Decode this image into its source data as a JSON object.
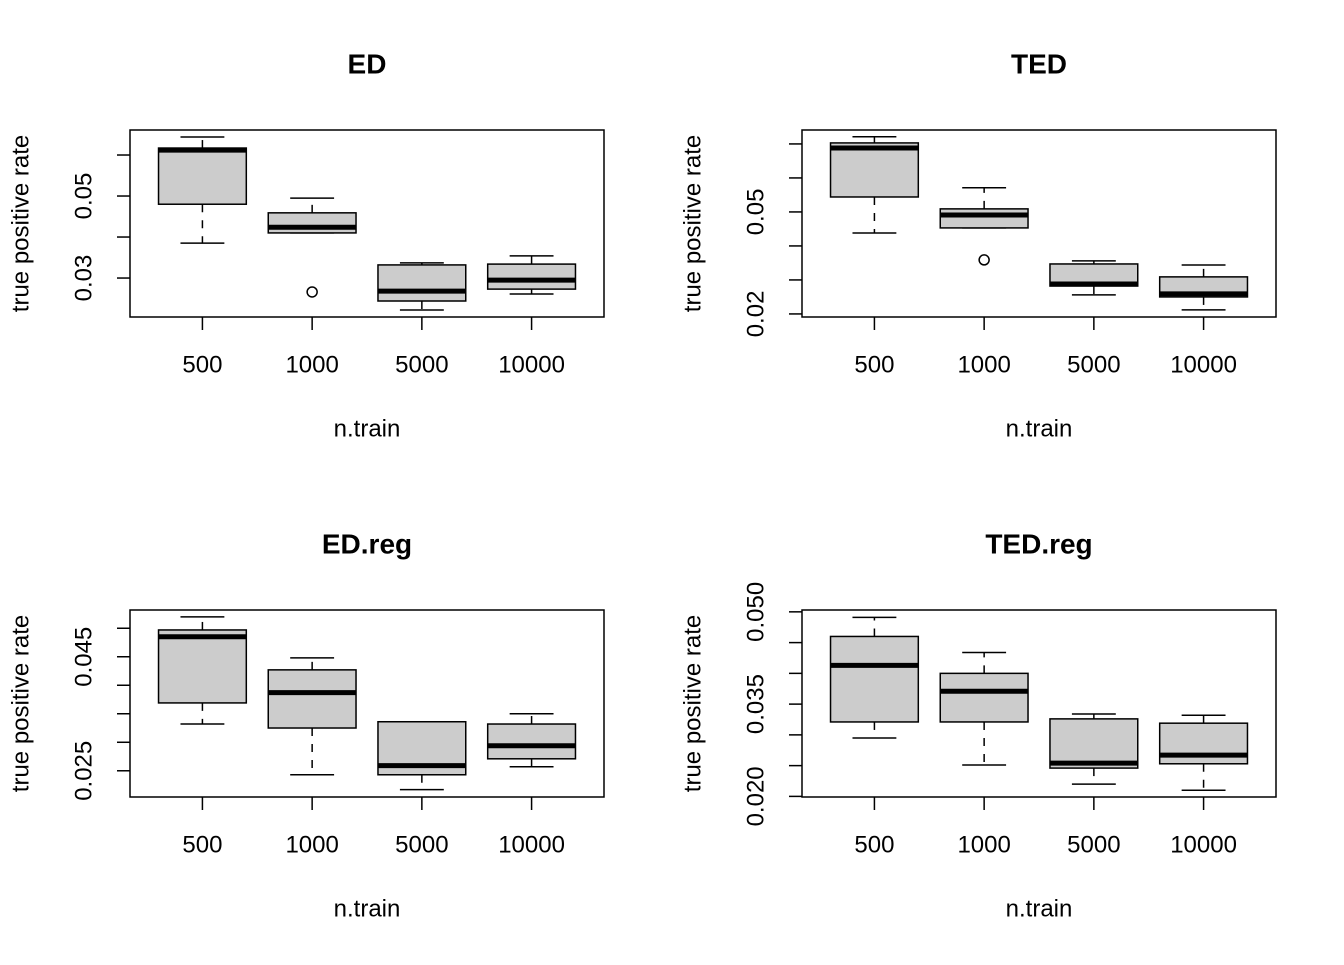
{
  "chart_data": [
    {
      "type": "box",
      "title": "ED",
      "xlabel": "n.train",
      "ylabel": "true positive rate",
      "color": "#cccccc",
      "categories": [
        "500",
        "1000",
        "5000",
        "10000"
      ],
      "stats": [
        {
          "whislo": 0.0385,
          "q1": 0.048,
          "med": 0.0612,
          "q3": 0.0617,
          "whishi": 0.0644,
          "fliers": []
        },
        {
          "whislo": 0.041,
          "q1": 0.041,
          "med": 0.0424,
          "q3": 0.0459,
          "whishi": 0.0495,
          "fliers": [
            0.0266
          ]
        },
        {
          "whislo": 0.0222,
          "q1": 0.0244,
          "med": 0.0268,
          "q3": 0.0332,
          "whishi": 0.0337,
          "fliers": []
        },
        {
          "whislo": 0.0261,
          "q1": 0.0273,
          "med": 0.0295,
          "q3": 0.0334,
          "whishi": 0.0354,
          "fliers": []
        }
      ],
      "ylim": [
        0.0205,
        0.0661
      ],
      "yticks": [
        0.03,
        0.05
      ],
      "yminor": [
        0.04,
        0.06
      ]
    },
    {
      "type": "box",
      "title": "TED",
      "xlabel": "n.train",
      "ylabel": "true positive rate",
      "color": "#cccccc",
      "categories": [
        "500",
        "1000",
        "5000",
        "10000"
      ],
      "stats": [
        {
          "whislo": 0.0438,
          "q1": 0.0544,
          "med": 0.0688,
          "q3": 0.0703,
          "whishi": 0.0721,
          "fliers": []
        },
        {
          "whislo": 0.0453,
          "q1": 0.0453,
          "med": 0.0491,
          "q3": 0.0509,
          "whishi": 0.0571,
          "fliers": [
            0.0359
          ]
        },
        {
          "whislo": 0.0256,
          "q1": 0.0282,
          "med": 0.0288,
          "q3": 0.0347,
          "whishi": 0.0356,
          "fliers": []
        },
        {
          "whislo": 0.0212,
          "q1": 0.025,
          "med": 0.0259,
          "q3": 0.0309,
          "whishi": 0.0344,
          "fliers": []
        }
      ],
      "ylim": [
        0.0191,
        0.0741
      ],
      "yticks": [
        0.02,
        0.05
      ],
      "yminor": [
        0.03,
        0.04,
        0.06,
        0.07
      ]
    },
    {
      "type": "box",
      "title": "ED.reg",
      "xlabel": "n.train",
      "ylabel": "true positive rate",
      "color": "#cccccc",
      "categories": [
        "500",
        "1000",
        "5000",
        "10000"
      ],
      "stats": [
        {
          "whislo": 0.0332,
          "q1": 0.0369,
          "med": 0.0485,
          "q3": 0.0497,
          "whishi": 0.052,
          "fliers": []
        },
        {
          "whislo": 0.0243,
          "q1": 0.0325,
          "med": 0.0387,
          "q3": 0.0427,
          "whishi": 0.0448,
          "fliers": []
        },
        {
          "whislo": 0.0217,
          "q1": 0.0243,
          "med": 0.0259,
          "q3": 0.0336,
          "whishi": 0.0336,
          "fliers": []
        },
        {
          "whislo": 0.0257,
          "q1": 0.0271,
          "med": 0.0294,
          "q3": 0.0332,
          "whishi": 0.035,
          "fliers": []
        }
      ],
      "ylim": [
        0.0204,
        0.0532
      ],
      "yticks": [
        0.025,
        0.045
      ],
      "yminor": [
        0.03,
        0.035,
        0.04,
        0.05
      ]
    },
    {
      "type": "box",
      "title": "TED.reg",
      "xlabel": "n.train",
      "ylabel": "true positive rate",
      "color": "#cccccc",
      "categories": [
        "500",
        "1000",
        "5000",
        "10000"
      ],
      "stats": [
        {
          "whislo": 0.0295,
          "q1": 0.0321,
          "med": 0.0413,
          "q3": 0.046,
          "whishi": 0.0491,
          "fliers": []
        },
        {
          "whislo": 0.0251,
          "q1": 0.0321,
          "med": 0.0371,
          "q3": 0.04,
          "whishi": 0.0434,
          "fliers": []
        },
        {
          "whislo": 0.022,
          "q1": 0.0246,
          "med": 0.0254,
          "q3": 0.0326,
          "whishi": 0.0334,
          "fliers": []
        },
        {
          "whislo": 0.021,
          "q1": 0.0253,
          "med": 0.0267,
          "q3": 0.0319,
          "whishi": 0.0332,
          "fliers": []
        }
      ],
      "ylim": [
        0.0199,
        0.0503
      ],
      "yticks": [
        {
          "value": 0.02,
          "label": "0.020"
        },
        0.035,
        {
          "value": 0.05,
          "label": "0.050"
        }
      ],
      "yminor": [
        0.025,
        0.03,
        0.04,
        0.045
      ]
    }
  ]
}
